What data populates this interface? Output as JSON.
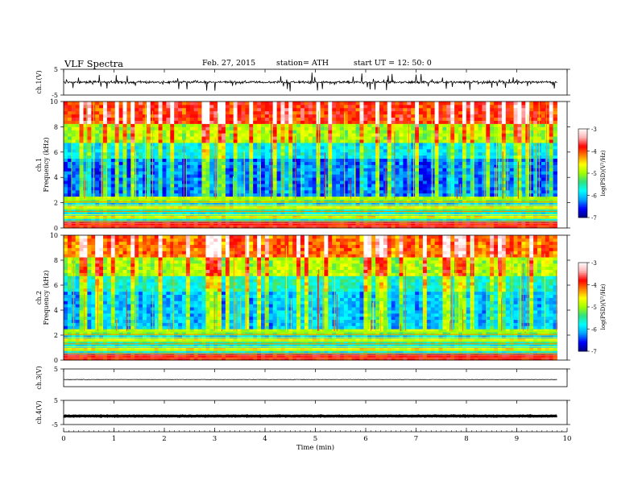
{
  "header": {
    "title": "VLF  Spectra",
    "date": "Feb. 27, 2015",
    "station": "station= ATH",
    "start": "start  UT  =    12: 50: 0"
  },
  "colors": {
    "colormap": [
      "#000080",
      "#0000ff",
      "#00a0ff",
      "#00ffff",
      "#30e080",
      "#a0ff00",
      "#ffff00",
      "#ff8000",
      "#ff0000",
      "#ffb0b0",
      "#ffffff"
    ],
    "trace": "#000000"
  },
  "chart_data": [
    {
      "type": "line",
      "id": "ch1-waveform",
      "ylabel": "ch.1(V)",
      "ylim": [
        -5,
        5
      ],
      "yticks": [
        "5",
        "-5"
      ],
      "baseline": 0,
      "note_style": "noisy waveform with frequent spikes"
    },
    {
      "type": "heatmap",
      "id": "ch1-spectrogram",
      "ylabel": [
        "ch.1",
        "Frequency  (kHz)"
      ],
      "ylim": [
        0,
        10
      ],
      "yticks": [
        "0",
        "2",
        "4",
        "6",
        "8",
        "10"
      ],
      "colorbar": {
        "label": "log(PSD)(V²/Hz)",
        "range": [
          -7,
          -3
        ],
        "ticks": [
          "-3",
          "-4",
          "-5",
          "-6",
          "-7"
        ]
      }
    },
    {
      "type": "heatmap",
      "id": "ch2-spectrogram",
      "ylabel": [
        "ch.2",
        "Frequency  (kHz)"
      ],
      "ylim": [
        0,
        10
      ],
      "yticks": [
        "0",
        "2",
        "4",
        "6",
        "8",
        "10"
      ],
      "colorbar": {
        "label": "log(PSD)(V²/Hz)",
        "range": [
          -7,
          -3
        ],
        "ticks": [
          "-3",
          "-4",
          "-5",
          "-6",
          "-7"
        ]
      }
    },
    {
      "type": "line",
      "id": "ch3-waveform",
      "ylabel": "ch.3(V)",
      "ylim": [
        -5,
        5
      ],
      "yticks": [
        "5"
      ],
      "baseline": -1
    },
    {
      "type": "line",
      "id": "ch4-waveform",
      "ylabel": "ch.4(V)",
      "ylim": [
        -5,
        5
      ],
      "yticks": [
        "5",
        "-5"
      ],
      "baseline": -1.5
    }
  ],
  "time_axis": {
    "xlabel": "Time  (min)",
    "xlim": [
      0,
      10
    ],
    "data_end": 9.8,
    "ticks": [
      "0",
      "1",
      "2",
      "3",
      "4",
      "5",
      "6",
      "7",
      "8",
      "9",
      "10"
    ]
  }
}
